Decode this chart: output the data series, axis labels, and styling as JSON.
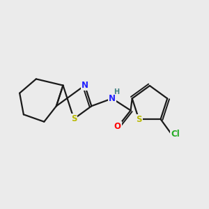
{
  "background_color": "#ebebeb",
  "bond_color": "#1a1a1a",
  "atom_colors": {
    "N": "#2020ff",
    "S": "#b8b800",
    "O": "#ff0000",
    "Cl": "#22aa22",
    "H": "#408080",
    "C": "#1a1a1a"
  },
  "figsize": [
    3.0,
    3.0
  ],
  "dpi": 100
}
